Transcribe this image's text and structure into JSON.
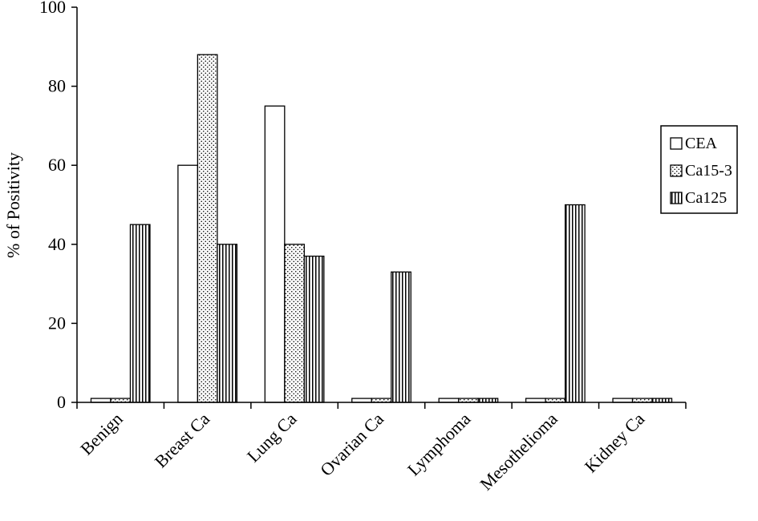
{
  "chart_data": {
    "type": "bar",
    "title": "",
    "xlabel": "",
    "ylabel": "% of Positivity",
    "ylim": [
      0,
      100
    ],
    "yticks": [
      "0",
      "20",
      "40",
      "60",
      "80",
      "100"
    ],
    "categories": [
      "Benign",
      "Breast Ca",
      "Lung Ca",
      "Ovarian Ca",
      "Lymphoma",
      "Mesothelioma",
      "Kidney Ca"
    ],
    "series": [
      {
        "name": "CEA",
        "values": [
          1,
          60,
          75,
          1,
          1,
          1,
          1
        ]
      },
      {
        "name": "Ca15-3",
        "values": [
          1,
          88,
          40,
          1,
          1,
          1,
          1
        ]
      },
      {
        "name": "Ca125",
        "values": [
          45,
          40,
          37,
          33,
          1,
          50,
          1
        ]
      }
    ],
    "legend_position": "right",
    "grid": false
  }
}
